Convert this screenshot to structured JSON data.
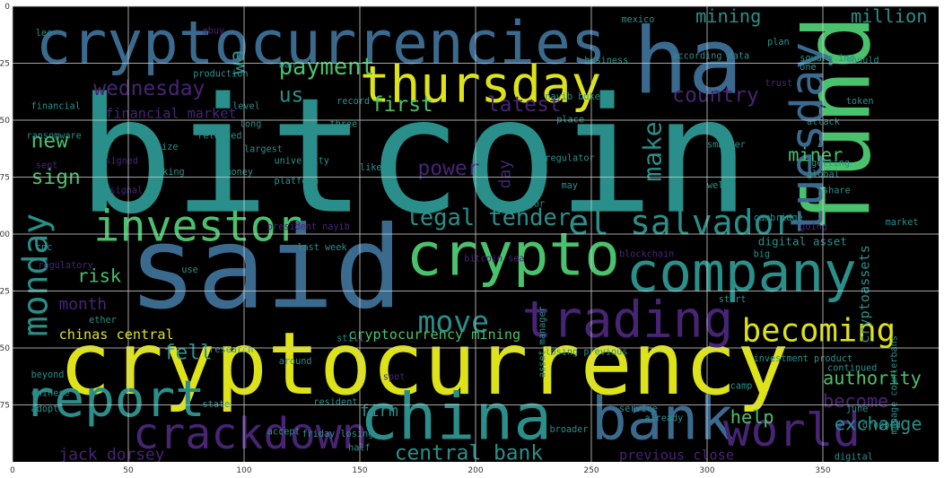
{
  "chart_data": {
    "type": "wordcloud",
    "title": "",
    "xlabel": "",
    "ylabel": "",
    "xlim": [
      0,
      400
    ],
    "ylim": [
      200,
      0
    ],
    "grid": true,
    "background": "#000000",
    "grid_color": "#cccccc",
    "colors": {
      "yellow": "#dde318",
      "teal": "#2a8f8a",
      "green": "#4ac16d",
      "blue": "#3f5f9a",
      "purple": "#482475",
      "lime": "#b5de2b",
      "steel": "#3b6a8f"
    },
    "x_ticks": [
      "0",
      "50",
      "100",
      "150",
      "200",
      "250",
      "300",
      "350"
    ],
    "x_tick_values": [
      0,
      50,
      100,
      150,
      200,
      250,
      300,
      350
    ],
    "y_ticks": [
      "0",
      "25",
      "50",
      "75",
      "100",
      "125",
      "150",
      "175"
    ],
    "y_tick_values": [
      0,
      25,
      50,
      75,
      100,
      125,
      150,
      175
    ],
    "words": [
      {
        "text": "bitcoin",
        "x": 28,
        "y": 90,
        "size": 70,
        "color": "teal",
        "rot": 0
      },
      {
        "text": "cryptocurrency",
        "x": 20,
        "y": 170,
        "size": 38,
        "color": "yellow",
        "rot": 0
      },
      {
        "text": "cryptocurrencies",
        "x": 10,
        "y": 25,
        "size": 26,
        "color": "steel",
        "rot": 0
      },
      {
        "text": "said",
        "x": 50,
        "y": 132,
        "size": 50,
        "color": "steel",
        "rot": 0
      },
      {
        "text": "ha",
        "x": 268,
        "y": 38,
        "size": 40,
        "color": "steel",
        "rot": 0
      },
      {
        "text": "fund",
        "x": 370,
        "y": 100,
        "size": 40,
        "color": "green",
        "rot": 270
      },
      {
        "text": "thursday",
        "x": 150,
        "y": 42,
        "size": 22,
        "color": "yellow",
        "rot": 0
      },
      {
        "text": "tuesday",
        "x": 350,
        "y": 100,
        "size": 20,
        "color": "steel",
        "rot": 270
      },
      {
        "text": "crypto",
        "x": 170,
        "y": 118,
        "size": 26,
        "color": "green",
        "rot": 0
      },
      {
        "text": "company",
        "x": 265,
        "y": 125,
        "size": 24,
        "color": "teal",
        "rot": 0
      },
      {
        "text": "trading",
        "x": 220,
        "y": 145,
        "size": 22,
        "color": "purple",
        "rot": 0
      },
      {
        "text": "china",
        "x": 150,
        "y": 190,
        "size": 28,
        "color": "teal",
        "rot": 0
      },
      {
        "text": "bank",
        "x": 250,
        "y": 190,
        "size": 26,
        "color": "steel",
        "rot": 0
      },
      {
        "text": "world",
        "x": 307,
        "y": 193,
        "size": 20,
        "color": "purple",
        "rot": 0
      },
      {
        "text": "report",
        "x": 5,
        "y": 180,
        "size": 22,
        "color": "teal",
        "rot": 0
      },
      {
        "text": "crackdown",
        "x": 52,
        "y": 194,
        "size": 19,
        "color": "purple",
        "rot": 0
      },
      {
        "text": "investor",
        "x": 35,
        "y": 103,
        "size": 19,
        "color": "green",
        "rot": 0
      },
      {
        "text": "el salvador",
        "x": 240,
        "y": 100,
        "size": 15,
        "color": "teal",
        "rot": 0
      },
      {
        "text": "monday",
        "x": 15,
        "y": 145,
        "size": 15,
        "color": "teal",
        "rot": 270
      },
      {
        "text": "becoming",
        "x": 315,
        "y": 147,
        "size": 14,
        "color": "yellow",
        "rot": 0
      },
      {
        "text": "legal tender",
        "x": 170,
        "y": 96,
        "size": 10,
        "color": "teal",
        "rot": 0
      },
      {
        "text": "move",
        "x": 175,
        "y": 143,
        "size": 13,
        "color": "teal",
        "rot": 0
      },
      {
        "text": "make",
        "x": 280,
        "y": 77,
        "size": 11,
        "color": "teal",
        "rot": 270
      },
      {
        "text": "payment",
        "x": 115,
        "y": 30,
        "size": 10,
        "color": "green",
        "rot": 0
      },
      {
        "text": "first",
        "x": 155,
        "y": 46,
        "size": 9,
        "color": "green",
        "rot": 0
      },
      {
        "text": "latest",
        "x": 205,
        "y": 46,
        "size": 9,
        "color": "purple",
        "rot": 0
      },
      {
        "text": "wednesday",
        "x": 35,
        "y": 39,
        "size": 9,
        "color": "purple",
        "rot": 0
      },
      {
        "text": "new",
        "x": 8,
        "y": 62,
        "size": 9,
        "color": "green",
        "rot": 0
      },
      {
        "text": "sign",
        "x": 8,
        "y": 78,
        "size": 9,
        "color": "green",
        "rot": 0
      },
      {
        "text": "power",
        "x": 175,
        "y": 74,
        "size": 9,
        "color": "purple",
        "rot": 0
      },
      {
        "text": "country",
        "x": 285,
        "y": 42,
        "size": 9,
        "color": "purple",
        "rot": 0
      },
      {
        "text": "mining",
        "x": 295,
        "y": 7,
        "size": 8,
        "color": "teal",
        "rot": 0
      },
      {
        "text": "million",
        "x": 362,
        "y": 7,
        "size": 8,
        "color": "teal",
        "rot": 0
      },
      {
        "text": "miner",
        "x": 335,
        "y": 68,
        "size": 8,
        "color": "green",
        "rot": 0
      },
      {
        "text": "us",
        "x": 115,
        "y": 42,
        "size": 9,
        "color": "teal",
        "rot": 0
      },
      {
        "text": "wa",
        "x": 100,
        "y": 30,
        "size": 9,
        "color": "teal",
        "rot": 270
      },
      {
        "text": "risk",
        "x": 28,
        "y": 121,
        "size": 8,
        "color": "green",
        "rot": 0
      },
      {
        "text": "month",
        "x": 20,
        "y": 133,
        "size": 7,
        "color": "purple",
        "rot": 0
      },
      {
        "text": "fell",
        "x": 65,
        "y": 155,
        "size": 9,
        "color": "teal",
        "rot": 0
      },
      {
        "text": "chinas central",
        "x": 20,
        "y": 146,
        "size": 6,
        "color": "yellow",
        "rot": 0
      },
      {
        "text": "cryptocurrency mining",
        "x": 145,
        "y": 146,
        "size": 6,
        "color": "green",
        "rot": 0
      },
      {
        "text": "authority",
        "x": 350,
        "y": 166,
        "size": 8,
        "color": "green",
        "rot": 0
      },
      {
        "text": "become",
        "x": 350,
        "y": 176,
        "size": 8,
        "color": "purple",
        "rot": 0
      },
      {
        "text": "exchange",
        "x": 355,
        "y": 186,
        "size": 8,
        "color": "teal",
        "rot": 0
      },
      {
        "text": "help",
        "x": 310,
        "y": 183,
        "size": 8,
        "color": "green",
        "rot": 0
      },
      {
        "text": "central bank",
        "x": 165,
        "y": 199,
        "size": 9,
        "color": "teal",
        "rot": 0
      },
      {
        "text": "jack dorsey",
        "x": 20,
        "y": 199,
        "size": 7,
        "color": "purple",
        "rot": 0
      },
      {
        "text": "firm",
        "x": 150,
        "y": 180,
        "size": 7,
        "color": "teal",
        "rot": 0
      },
      {
        "text": "financial market",
        "x": 40,
        "y": 49,
        "size": 6,
        "color": "purple",
        "rot": 0
      },
      {
        "text": "digital asset",
        "x": 322,
        "y": 105,
        "size": 5,
        "color": "teal",
        "rot": 0
      },
      {
        "text": "cryptoassets",
        "x": 370,
        "y": 148,
        "size": 6,
        "color": "teal",
        "rot": 270
      },
      {
        "text": "previous close",
        "x": 262,
        "y": 199,
        "size": 6,
        "color": "purple",
        "rot": 0
      },
      {
        "text": "day",
        "x": 215,
        "y": 80,
        "size": 7,
        "color": "purple",
        "rot": 270
      },
      {
        "text": "president nayib",
        "x": 110,
        "y": 98,
        "size": 4,
        "color": "purple",
        "rot": 0
      },
      {
        "text": "according data",
        "x": 285,
        "y": 23,
        "size": 4,
        "color": "teal",
        "rot": 0
      },
      {
        "text": "square inc",
        "x": 340,
        "y": 24,
        "size": 4,
        "color": "teal",
        "rot": 0
      },
      {
        "text": "financial",
        "x": 8,
        "y": 45,
        "size": 4,
        "color": "teal",
        "rot": 0
      },
      {
        "text": "ransomware",
        "x": 6,
        "y": 58,
        "size": 4,
        "color": "teal",
        "rot": 0
      },
      {
        "text": "released",
        "x": 80,
        "y": 58,
        "size": 4,
        "color": "teal",
        "rot": 0
      },
      {
        "text": "largest",
        "x": 100,
        "y": 64,
        "size": 4,
        "color": "teal",
        "rot": 0
      },
      {
        "text": "platform",
        "x": 113,
        "y": 78,
        "size": 4,
        "color": "teal",
        "rot": 0
      },
      {
        "text": "regulator",
        "x": 230,
        "y": 68,
        "size": 4,
        "color": "teal",
        "rot": 0
      },
      {
        "text": "university",
        "x": 113,
        "y": 69,
        "size": 4,
        "color": "teal",
        "rot": 0
      },
      {
        "text": "likely",
        "x": 150,
        "y": 72,
        "size": 4,
        "color": "teal",
        "rot": 0
      },
      {
        "text": "research",
        "x": 85,
        "y": 152,
        "size": 4,
        "color": "teal",
        "rot": 0
      },
      {
        "text": "around",
        "x": 115,
        "y": 157,
        "size": 4,
        "color": "teal",
        "rot": 0
      },
      {
        "text": "regulatory",
        "x": 11,
        "y": 115,
        "size": 4,
        "color": "purple",
        "rot": 0
      },
      {
        "text": "beyond",
        "x": 8,
        "y": 163,
        "size": 4,
        "color": "teal",
        "rot": 0
      },
      {
        "text": "chinese",
        "x": 8,
        "y": 171,
        "size": 4,
        "color": "teal",
        "rot": 0
      },
      {
        "text": "adopt",
        "x": 8,
        "y": 178,
        "size": 4,
        "color": "teal",
        "rot": 0
      },
      {
        "text": "state",
        "x": 82,
        "y": 176,
        "size": 4,
        "color": "teal",
        "rot": 0
      },
      {
        "text": "resident",
        "x": 130,
        "y": 175,
        "size": 4,
        "color": "teal",
        "rot": 0
      },
      {
        "text": "continued",
        "x": 352,
        "y": 160,
        "size": 4,
        "color": "teal",
        "rot": 0
      },
      {
        "text": "investment product",
        "x": 320,
        "y": 156,
        "size": 4,
        "color": "teal",
        "rot": 0
      },
      {
        "text": "camp",
        "x": 310,
        "y": 168,
        "size": 4,
        "color": "teal",
        "rot": 0
      },
      {
        "text": "dropped",
        "x": 367,
        "y": 185,
        "size": 4,
        "color": "teal",
        "rot": 0
      },
      {
        "text": "june",
        "x": 360,
        "y": 178,
        "size": 4,
        "color": "teal",
        "rot": 0
      },
      {
        "text": "digital",
        "x": 355,
        "y": 199,
        "size": 4,
        "color": "teal",
        "rot": 0
      },
      {
        "text": "service",
        "x": 262,
        "y": 178,
        "size": 4,
        "color": "teal",
        "rot": 0
      },
      {
        "text": "already",
        "x": 273,
        "y": 182,
        "size": 4,
        "color": "teal",
        "rot": 0
      },
      {
        "text": "broader",
        "x": 232,
        "y": 187,
        "size": 4,
        "color": "teal",
        "rot": 0
      },
      {
        "text": "half",
        "x": 145,
        "y": 195,
        "size": 4,
        "color": "teal",
        "rot": 0
      },
      {
        "text": "friday losing",
        "x": 125,
        "y": 189,
        "size": 4,
        "color": "teal",
        "rot": 0
      },
      {
        "text": "last week",
        "x": 123,
        "y": 107,
        "size": 4,
        "color": "teal",
        "rot": 0
      },
      {
        "text": "global",
        "x": 343,
        "y": 75,
        "size": 4,
        "color": "teal",
        "rot": 0
      },
      {
        "text": "smaller",
        "x": 300,
        "y": 62,
        "size": 4,
        "color": "teal",
        "rot": 0
      },
      {
        "text": "share",
        "x": 350,
        "y": 82,
        "size": 4,
        "color": "teal",
        "rot": 0
      },
      {
        "text": "attack",
        "x": 343,
        "y": 52,
        "size": 4,
        "color": "teal",
        "rot": 0
      },
      {
        "text": "cambridge",
        "x": 320,
        "y": 94,
        "size": 4,
        "color": "teal",
        "rot": 0
      },
      {
        "text": "big",
        "x": 320,
        "y": 110,
        "size": 4,
        "color": "teal",
        "rot": 0
      },
      {
        "text": "start",
        "x": 305,
        "y": 130,
        "size": 4,
        "color": "teal",
        "rot": 0
      },
      {
        "text": "market",
        "x": 377,
        "y": 96,
        "size": 4,
        "color": "teal",
        "rot": 0
      },
      {
        "text": "nayib bukele",
        "x": 230,
        "y": 41,
        "size": 4,
        "color": "teal",
        "rot": 0
      },
      {
        "text": "place",
        "x": 235,
        "y": 51,
        "size": 4,
        "color": "teal",
        "rot": 0
      },
      {
        "text": "business",
        "x": 247,
        "y": 25,
        "size": 4,
        "color": "teal",
        "rot": 0
      },
      {
        "text": "mexico",
        "x": 263,
        "y": 7,
        "size": 4,
        "color": "teal",
        "rot": 0
      },
      {
        "text": "plan",
        "x": 326,
        "y": 17,
        "size": 4,
        "color": "teal",
        "rot": 0
      },
      {
        "text": "production",
        "x": 78,
        "y": 31,
        "size": 4,
        "color": "teal",
        "rot": 0
      },
      {
        "text": "level",
        "x": 95,
        "y": 45,
        "size": 4,
        "color": "teal",
        "rot": 0
      },
      {
        "text": "long",
        "x": 98,
        "y": 53,
        "size": 4,
        "color": "teal",
        "rot": 0
      },
      {
        "text": "three",
        "x": 137,
        "y": 53,
        "size": 4,
        "color": "teal",
        "rot": 0
      },
      {
        "text": "ban",
        "x": 115,
        "y": 27,
        "size": 4,
        "color": "teal",
        "rot": 0
      },
      {
        "text": "record",
        "x": 140,
        "y": 43,
        "size": 4,
        "color": "teal",
        "rot": 0
      },
      {
        "text": "major",
        "x": 218,
        "y": 88,
        "size": 4,
        "color": "teal",
        "rot": 0
      },
      {
        "text": "may",
        "x": 237,
        "y": 80,
        "size": 4,
        "color": "teal",
        "rot": 0
      },
      {
        "text": "well",
        "x": 300,
        "y": 80,
        "size": 4,
        "color": "teal",
        "rot": 0
      },
      {
        "text": "blockchain",
        "x": 262,
        "y": 110,
        "size": 4,
        "color": "purple",
        "rot": 0
      },
      {
        "text": "token",
        "x": 360,
        "y": 43,
        "size": 4,
        "color": "teal",
        "rot": 0
      },
      {
        "text": "should",
        "x": 360,
        "y": 25,
        "size": 4,
        "color": "teal",
        "rot": 0
      },
      {
        "text": "asset manager",
        "x": 230,
        "y": 163,
        "size": 4,
        "color": "teal",
        "rot": 270
      },
      {
        "text": "losing previous",
        "x": 230,
        "y": 153,
        "size": 4,
        "color": "teal",
        "rot": 0
      },
      {
        "text": "manage counterbans",
        "x": 382,
        "y": 188,
        "size": 4,
        "color": "teal",
        "rot": 270
      },
      {
        "text": "ether",
        "x": 33,
        "y": 139,
        "size": 4,
        "color": "teal",
        "rot": 0
      },
      {
        "text": "size",
        "x": 62,
        "y": 63,
        "size": 4,
        "color": "teal",
        "rot": 0
      },
      {
        "text": "making",
        "x": 60,
        "y": 74,
        "size": 4,
        "color": "teal",
        "rot": 0
      },
      {
        "text": "money",
        "x": 92,
        "y": 74,
        "size": 4,
        "color": "teal",
        "rot": 0
      },
      {
        "text": "signed",
        "x": 40,
        "y": 69,
        "size": 4,
        "color": "purple",
        "rot": 0
      },
      {
        "text": "one",
        "x": 340,
        "y": 28,
        "size": 4,
        "color": "teal",
        "rot": 0
      },
      {
        "text": "trust",
        "x": 325,
        "y": 35,
        "size": 4,
        "color": "purple",
        "rot": 0
      },
      {
        "text": "still",
        "x": 140,
        "y": 147,
        "size": 4,
        "color": "teal",
        "rot": 0
      },
      {
        "text": "accept",
        "x": 110,
        "y": 188,
        "size": 4,
        "color": "teal",
        "rot": 0
      },
      {
        "text": "use",
        "x": 73,
        "y": 117,
        "size": 4,
        "color": "teal",
        "rot": 0
      },
      {
        "text": "cnc",
        "x": 10,
        "y": 107,
        "size": 4,
        "color": "teal",
        "rot": 0
      },
      {
        "text": "lee",
        "x": 10,
        "y": 13,
        "size": 4,
        "color": "teal",
        "rot": 0
      },
      {
        "text": "gbuy",
        "x": 82,
        "y": 12,
        "size": 4,
        "color": "purple",
        "rot": 0
      },
      {
        "text": "going",
        "x": 340,
        "y": 98,
        "size": 4,
        "color": "purple",
        "rot": 0
      },
      {
        "text": "getting",
        "x": 345,
        "y": 70,
        "size": 4,
        "color": "teal",
        "rot": 0
      },
      {
        "text": "signal",
        "x": 42,
        "y": 82,
        "size": 4,
        "color": "purple",
        "rot": 0
      },
      {
        "text": "sept",
        "x": 10,
        "y": 71,
        "size": 4,
        "color": "purple",
        "rot": 0
      },
      {
        "text": "bitcoin sea",
        "x": 195,
        "y": 112,
        "size": 4,
        "color": "purple",
        "rot": 0
      },
      {
        "text": "spot",
        "x": 160,
        "y": 164,
        "size": 4,
        "color": "purple",
        "rot": 0
      }
    ]
  }
}
